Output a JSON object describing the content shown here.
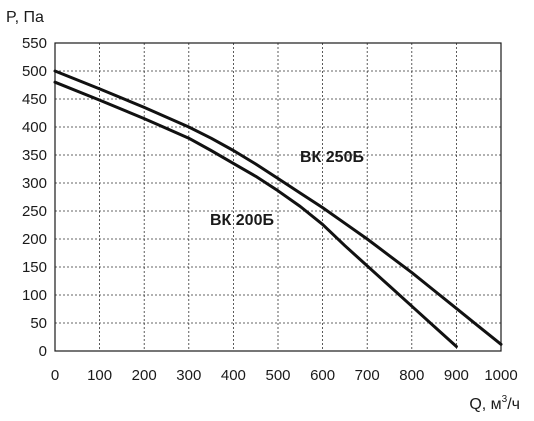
{
  "chart_data": {
    "type": "line",
    "ylabel": "P, Па",
    "xlabel_main": "Q, м",
    "xlabel_sup": "3",
    "xlabel_tail": "/ч",
    "xlim": [
      0,
      1000
    ],
    "ylim": [
      0,
      550
    ],
    "x_ticks": [
      0,
      100,
      200,
      300,
      400,
      500,
      600,
      700,
      800,
      900,
      1000
    ],
    "y_ticks": [
      0,
      50,
      100,
      150,
      200,
      250,
      300,
      350,
      400,
      450,
      500,
      550
    ],
    "grid": true,
    "series": [
      {
        "name": "ВК 250Б",
        "x": [
          0,
          100,
          200,
          300,
          350,
          400,
          450,
          500,
          550,
          600,
          650,
          700,
          750,
          800,
          850,
          900,
          950,
          1000
        ],
        "y": [
          500,
          468,
          435,
          400,
          380,
          358,
          334,
          308,
          282,
          256,
          228,
          200,
          170,
          140,
          108,
          76,
          44,
          12
        ]
      },
      {
        "name": "ВК 200Б",
        "x": [
          0,
          100,
          200,
          300,
          350,
          400,
          450,
          500,
          550,
          600,
          650,
          700,
          750,
          800,
          850,
          900
        ],
        "y": [
          480,
          448,
          415,
          380,
          358,
          335,
          312,
          286,
          258,
          226,
          188,
          152,
          116,
          80,
          44,
          8
        ]
      }
    ]
  }
}
